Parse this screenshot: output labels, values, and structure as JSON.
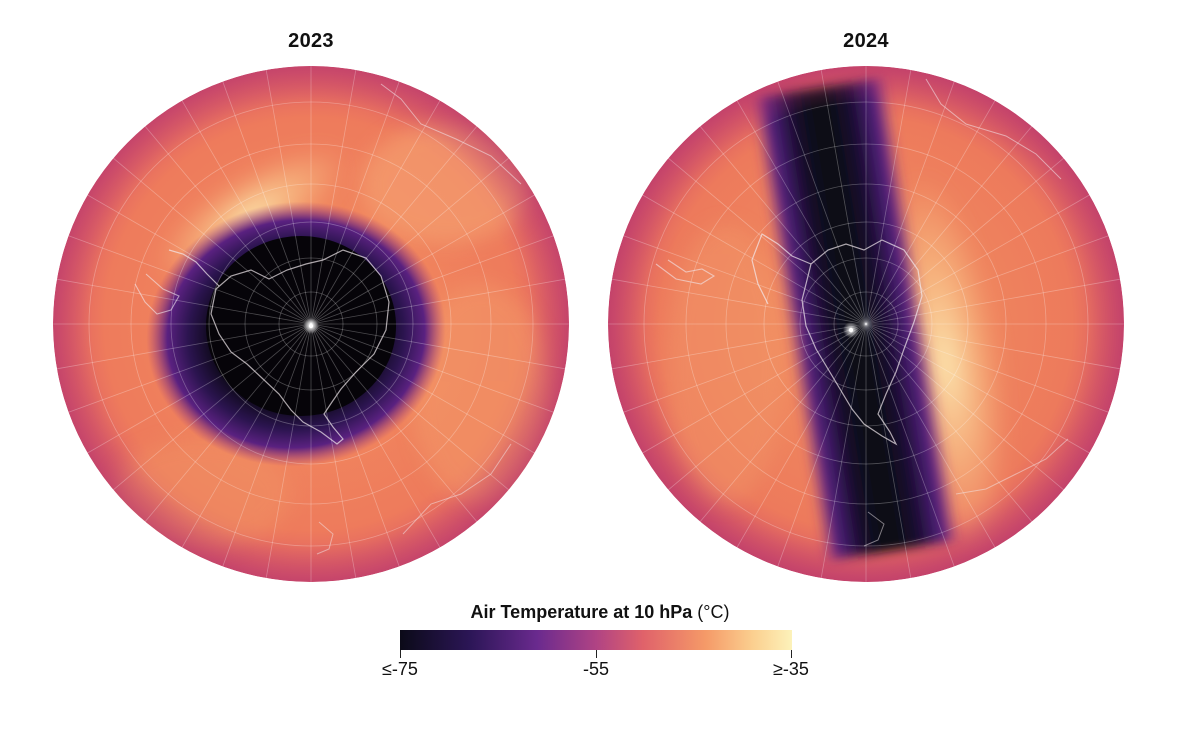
{
  "maps": [
    {
      "title": "2023"
    },
    {
      "title": "2024"
    }
  ],
  "legend": {
    "title": "Air Temperature at 10 hPa",
    "unit": "(°C)",
    "ticks": [
      "≤-75",
      "-55",
      "≥-35"
    ],
    "colors": [
      "#0c0a1a",
      "#3b1a6e",
      "#8a3a9a",
      "#d8566e",
      "#f5895c",
      "#fbc27f",
      "#fcf0b5"
    ]
  }
}
